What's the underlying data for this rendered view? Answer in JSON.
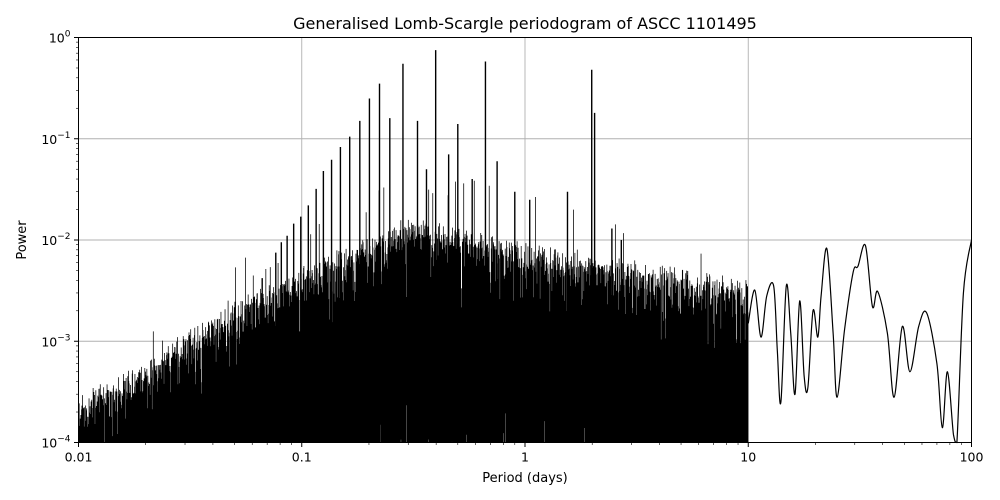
{
  "chart_data": {
    "type": "line",
    "title": "Generalised Lomb-Scargle periodogram of ASCC 1101495",
    "xlabel": "Period (days)",
    "ylabel": "Power",
    "xscale": "log",
    "yscale": "log",
    "xlim": [
      0.01,
      100
    ],
    "ylim": [
      0.0001,
      1
    ],
    "grid": true,
    "line_color": "#000000",
    "x_ticks": [
      {
        "value": 0.01,
        "label": "0.01"
      },
      {
        "value": 0.1,
        "label": "0.1"
      },
      {
        "value": 1,
        "label": "1"
      },
      {
        "value": 10,
        "label": "10"
      },
      {
        "value": 100,
        "label": "100"
      }
    ],
    "y_ticks": [
      {
        "value": 0.0001,
        "base": "10",
        "exp": "−4"
      },
      {
        "value": 0.001,
        "base": "10",
        "exp": "−3"
      },
      {
        "value": 0.01,
        "base": "10",
        "exp": "−2"
      },
      {
        "value": 0.1,
        "base": "10",
        "exp": "−1"
      },
      {
        "value": 1,
        "base": "10",
        "exp": "0"
      }
    ],
    "peaks": [
      {
        "period": 0.0665,
        "power": 0.0042
      },
      {
        "period": 0.0765,
        "power": 0.0075
      },
      {
        "period": 0.081,
        "power": 0.0095
      },
      {
        "period": 0.086,
        "power": 0.011
      },
      {
        "period": 0.092,
        "power": 0.0145
      },
      {
        "period": 0.099,
        "power": 0.017
      },
      {
        "period": 0.107,
        "power": 0.022
      },
      {
        "period": 0.116,
        "power": 0.032
      },
      {
        "period": 0.125,
        "power": 0.048
      },
      {
        "period": 0.136,
        "power": 0.062
      },
      {
        "period": 0.149,
        "power": 0.083
      },
      {
        "period": 0.164,
        "power": 0.105
      },
      {
        "period": 0.182,
        "power": 0.15
      },
      {
        "period": 0.201,
        "power": 0.25
      },
      {
        "period": 0.223,
        "power": 0.35
      },
      {
        "period": 0.248,
        "power": 0.16
      },
      {
        "period": 0.284,
        "power": 0.55
      },
      {
        "period": 0.33,
        "power": 0.15
      },
      {
        "period": 0.362,
        "power": 0.05
      },
      {
        "period": 0.398,
        "power": 0.75
      },
      {
        "period": 0.455,
        "power": 0.07
      },
      {
        "period": 0.5,
        "power": 0.14
      },
      {
        "period": 0.58,
        "power": 0.04
      },
      {
        "period": 0.665,
        "power": 0.58
      },
      {
        "period": 0.75,
        "power": 0.06
      },
      {
        "period": 0.9,
        "power": 0.03
      },
      {
        "period": 1.05,
        "power": 0.025
      },
      {
        "period": 1.55,
        "power": 0.03
      },
      {
        "period": 1.99,
        "power": 0.48
      },
      {
        "period": 2.05,
        "power": 0.18
      },
      {
        "period": 2.45,
        "power": 0.013
      },
      {
        "period": 2.7,
        "power": 0.01
      }
    ],
    "envelope": [
      {
        "period": 0.01,
        "power": 0.00022
      },
      {
        "period": 0.02,
        "power": 0.00045
      },
      {
        "period": 0.03,
        "power": 0.0009
      },
      {
        "period": 0.05,
        "power": 0.0018
      },
      {
        "period": 0.1,
        "power": 0.004
      },
      {
        "period": 0.2,
        "power": 0.008
      },
      {
        "period": 0.3,
        "power": 0.012
      },
      {
        "period": 0.5,
        "power": 0.01
      },
      {
        "period": 0.8,
        "power": 0.008
      },
      {
        "period": 1.5,
        "power": 0.006
      },
      {
        "period": 2.5,
        "power": 0.005
      },
      {
        "period": 4,
        "power": 0.004
      },
      {
        "period": 6,
        "power": 0.0035
      },
      {
        "period": 10,
        "power": 0.003
      }
    ],
    "lowfreq_curve": [
      {
        "period": 10.0,
        "power": 0.0015
      },
      {
        "period": 10.7,
        "power": 0.0032
      },
      {
        "period": 11.4,
        "power": 0.0011
      },
      {
        "period": 12.1,
        "power": 0.0028
      },
      {
        "period": 13.0,
        "power": 0.0035
      },
      {
        "period": 13.5,
        "power": 0.0008
      },
      {
        "period": 14.0,
        "power": 0.00025
      },
      {
        "period": 14.8,
        "power": 0.0035
      },
      {
        "period": 15.5,
        "power": 0.0012
      },
      {
        "period": 16.2,
        "power": 0.0003
      },
      {
        "period": 17.0,
        "power": 0.0025
      },
      {
        "period": 17.8,
        "power": 0.00045
      },
      {
        "period": 18.5,
        "power": 0.00035
      },
      {
        "period": 19.5,
        "power": 0.002
      },
      {
        "period": 20.5,
        "power": 0.0011
      },
      {
        "period": 21.2,
        "power": 0.0028
      },
      {
        "period": 22.5,
        "power": 0.0082
      },
      {
        "period": 24.0,
        "power": 0.0012
      },
      {
        "period": 25.0,
        "power": 0.00028
      },
      {
        "period": 27.0,
        "power": 0.0013
      },
      {
        "period": 29.5,
        "power": 0.0048
      },
      {
        "period": 31.0,
        "power": 0.0055
      },
      {
        "period": 33.5,
        "power": 0.0088
      },
      {
        "period": 36.0,
        "power": 0.0022
      },
      {
        "period": 38.0,
        "power": 0.0031
      },
      {
        "period": 42.0,
        "power": 0.0012
      },
      {
        "period": 45.0,
        "power": 0.00028
      },
      {
        "period": 49.0,
        "power": 0.0014
      },
      {
        "period": 53.0,
        "power": 0.0005
      },
      {
        "period": 58.0,
        "power": 0.0014
      },
      {
        "period": 63.0,
        "power": 0.0019
      },
      {
        "period": 70.0,
        "power": 0.0006
      },
      {
        "period": 74.0,
        "power": 0.00014
      },
      {
        "period": 78.0,
        "power": 0.0005
      },
      {
        "period": 83.0,
        "power": 0.00012
      },
      {
        "period": 86.0,
        "power": 0.0001
      },
      {
        "period": 92.0,
        "power": 0.003
      },
      {
        "period": 100.0,
        "power": 0.01
      }
    ]
  }
}
